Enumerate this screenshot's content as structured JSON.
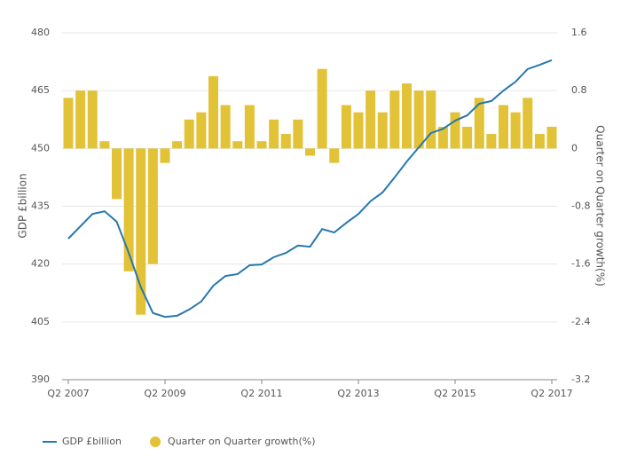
{
  "chart_data": {
    "type": "combo",
    "ylabel": "GDP £billion",
    "y2label": "Quarter on Quarter growth(%)",
    "categories": [
      "Q2 2007",
      null,
      null,
      null,
      null,
      null,
      null,
      null,
      "Q2 2009",
      null,
      null,
      null,
      null,
      null,
      null,
      null,
      "Q2 2011",
      null,
      null,
      null,
      null,
      null,
      null,
      null,
      "Q2 2013",
      null,
      null,
      null,
      null,
      null,
      null,
      null,
      "Q2 2015",
      null,
      null,
      null,
      null,
      null,
      null,
      null,
      "Q2 2017"
    ],
    "series": [
      {
        "name": "GDP £billion",
        "type": "line",
        "color": "#2678ad",
        "values": [
          426.6,
          429.8,
          433.0,
          433.7,
          431.0,
          422.9,
          414.0,
          407.3,
          406.3,
          406.6,
          408.2,
          410.3,
          414.4,
          416.9,
          417.4,
          419.7,
          419.9,
          421.8,
          422.9,
          424.8,
          424.5,
          429.1,
          428.2,
          430.7,
          433.0,
          436.3,
          438.6,
          442.5,
          446.6,
          450.3,
          454.0,
          455.1,
          457.2,
          458.6,
          461.6,
          462.3,
          465.0,
          467.3,
          470.6,
          471.7,
          472.9
        ]
      },
      {
        "name": "Quarter on Quarter growth(%)",
        "type": "bar",
        "axis": "y2",
        "color": "#e2c236",
        "values": [
          0.7,
          0.8,
          0.8,
          0.1,
          -0.7,
          -1.7,
          -2.3,
          -1.6,
          -0.2,
          0.1,
          0.4,
          0.5,
          1.0,
          0.6,
          0.1,
          0.6,
          0.1,
          0.4,
          0.2,
          0.4,
          -0.1,
          1.1,
          -0.2,
          0.6,
          0.5,
          0.8,
          0.5,
          0.8,
          0.9,
          0.8,
          0.8,
          0.3,
          0.5,
          0.3,
          0.7,
          0.2,
          0.6,
          0.5,
          0.7,
          0.2,
          0.3
        ]
      }
    ],
    "ylim": [
      390,
      480
    ],
    "yticks": [
      390,
      405,
      420,
      435,
      450,
      465,
      480
    ],
    "y2lim": [
      -3.2,
      1.6
    ],
    "y2ticks": [
      -3.2,
      -2.4,
      -1.6,
      -0.8,
      0,
      0.8,
      1.6
    ],
    "grid": true,
    "legend": "bottom"
  }
}
